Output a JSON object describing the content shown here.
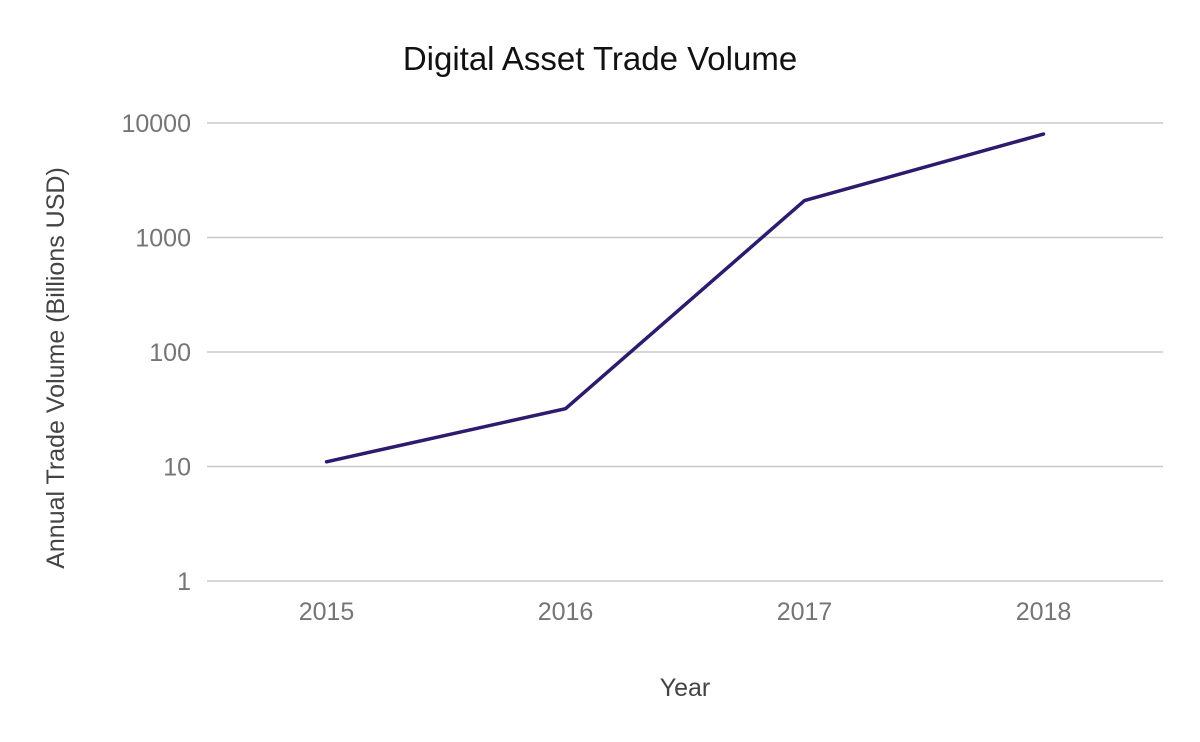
{
  "chart_data": {
    "type": "line",
    "title": "Digital Asset Trade Volume",
    "xlabel": "Year",
    "ylabel": "Annual Trade Volume (Billions USD)",
    "y_scale": "log",
    "ylim": [
      1,
      10000
    ],
    "y_ticks": [
      1,
      10,
      100,
      1000,
      10000
    ],
    "y_tick_labels": [
      "1",
      "10",
      "100",
      "1000",
      "10000"
    ],
    "categories": [
      "2015",
      "2016",
      "2017",
      "2018"
    ],
    "series": [
      {
        "values": [
          11,
          32,
          2100,
          8000
        ],
        "color": "#2e1a6e"
      }
    ],
    "grid": true,
    "legend": "none"
  }
}
